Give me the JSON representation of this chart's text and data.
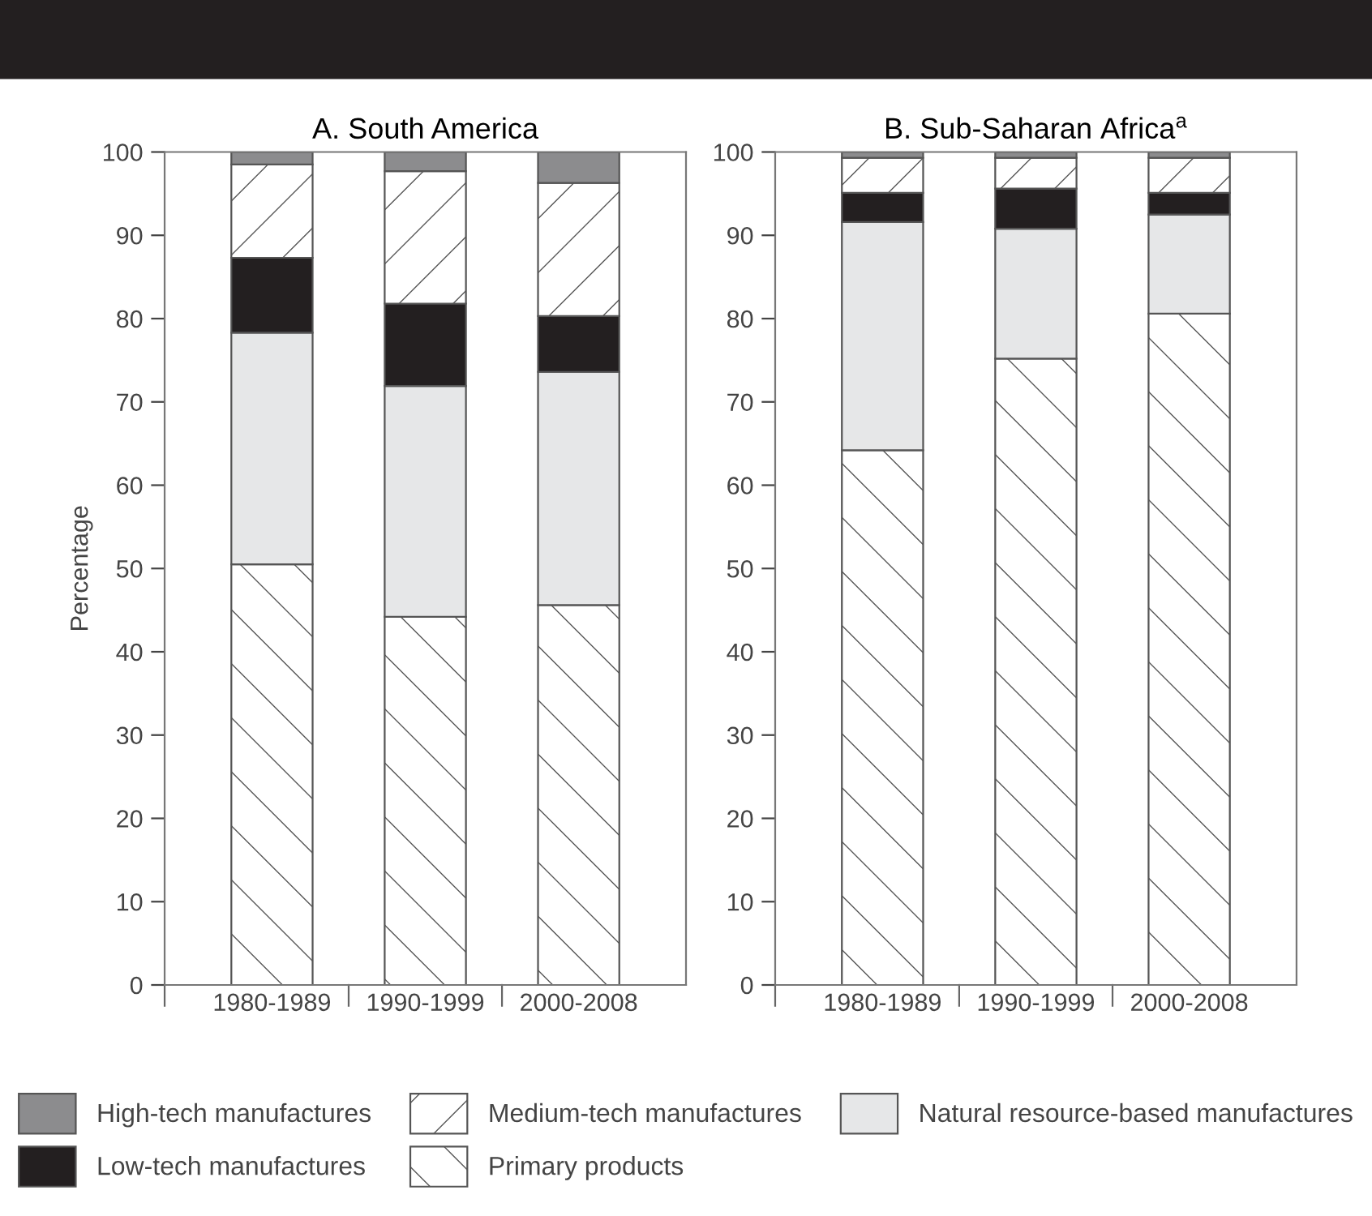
{
  "chart_data": [
    {
      "type": "bar",
      "stacked": true,
      "title": "A. South America",
      "ylabel": "Percentage",
      "categories": [
        "1980-1989",
        "1990-1999",
        "2000-2008"
      ],
      "ylim": [
        0,
        100
      ],
      "yticks": [
        0,
        10,
        20,
        30,
        40,
        50,
        60,
        70,
        80,
        90,
        100
      ],
      "grid": false,
      "legend": "bottom",
      "series": [
        {
          "name": "Primary products",
          "color": "#ffffff",
          "values": [
            50.5,
            44.2,
            45.6
          ]
        },
        {
          "name": "Natural resource-based manufactures",
          "color": "#e6e7e8",
          "values": [
            27.8,
            27.7,
            28.0
          ]
        },
        {
          "name": "Low-tech manufactures",
          "color": "#231f20",
          "values": [
            9.0,
            9.9,
            6.7
          ]
        },
        {
          "name": "Medium-tech manufactures",
          "color": "#ffffff",
          "values": [
            11.2,
            15.9,
            16.0
          ]
        },
        {
          "name": "High-tech manufactures",
          "color": "#8c8c8e",
          "values": [
            1.5,
            2.3,
            3.7
          ]
        }
      ]
    },
    {
      "type": "bar",
      "stacked": true,
      "title": "B. Sub-Saharan Africa$^{a}$",
      "categories": [
        "1980-1989",
        "1990-1999",
        "2000-2008"
      ],
      "ylim": [
        0,
        100
      ],
      "yticks": [
        0,
        10,
        20,
        30,
        40,
        50,
        60,
        70,
        80,
        90,
        100
      ],
      "grid": false,
      "series": [
        {
          "color": "#ffffff",
          "values": [
            64.2,
            75.2,
            80.6
          ]
        },
        {
          "color": "#e6e7e8",
          "values": [
            27.4,
            15.6,
            11.9
          ]
        },
        {
          "color": "#231f20",
          "values": [
            3.5,
            4.8,
            2.6
          ]
        },
        {
          "color": "#ffffff",
          "values": [
            4.2,
            3.7,
            4.2
          ]
        },
        {
          "color": "#8c8c8e",
          "values": [
            0.7,
            0.7,
            0.7
          ]
        }
      ]
    }
  ]
}
